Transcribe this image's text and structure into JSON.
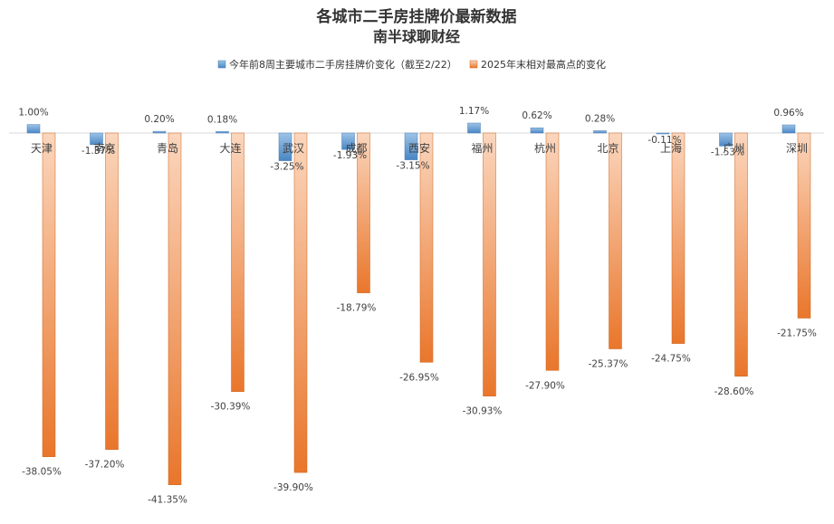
{
  "chart_data": {
    "type": "bar",
    "title": "各城市二手房挂牌价最新数据",
    "subtitle": "南半球聊财经",
    "categories": [
      "天津",
      "南京",
      "青岛",
      "大连",
      "武汉",
      "成都",
      "西安",
      "福州",
      "杭州",
      "北京",
      "上海",
      "广州",
      "深圳"
    ],
    "series": [
      {
        "name": "今年前8周主要城市二手房挂牌价变化（截至2/22）",
        "color": "#5b9bd5",
        "values": [
          1.0,
          -1.37,
          0.2,
          0.18,
          -3.25,
          -1.93,
          -3.15,
          1.17,
          0.62,
          0.28,
          -0.11,
          -1.53,
          0.96
        ],
        "labels": [
          "1.00%",
          "-1.37%",
          "0.20%",
          "0.18%",
          "-3.25%",
          "-1.93%",
          "-3.15%",
          "1.17%",
          "0.62%",
          "0.28%",
          "-0.11%",
          "-1.53%",
          "0.96%"
        ]
      },
      {
        "name": "2025年末相对最高点的变化",
        "color": "#ed7d31",
        "values": [
          -38.05,
          -37.2,
          -41.35,
          -30.39,
          -39.9,
          -18.79,
          -26.95,
          -30.93,
          -27.9,
          -25.37,
          -24.75,
          -28.6,
          -21.75
        ],
        "labels": [
          "-38.05%",
          "-37.20%",
          "-41.35%",
          "-30.39%",
          "-39.90%",
          "-18.79%",
          "-26.95%",
          "-30.93%",
          "-27.90%",
          "-25.37%",
          "-24.75%",
          "-28.60%",
          "-21.75%"
        ]
      }
    ],
    "xlabel": "",
    "ylabel": "",
    "ylim": [
      -44,
      2
    ],
    "grid": false,
    "legend": "top"
  }
}
